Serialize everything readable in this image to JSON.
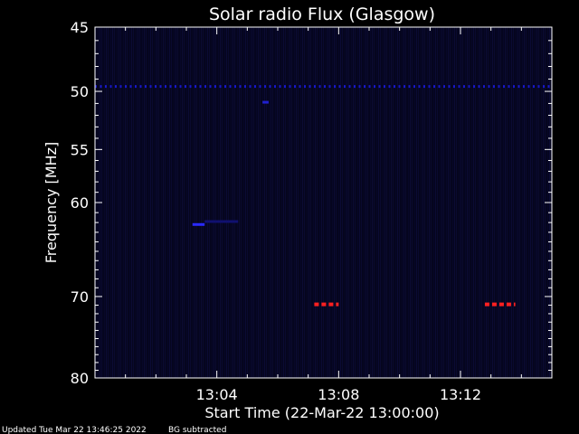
{
  "chart_data": {
    "type": "heatmap",
    "title": "Solar radio Flux (Glasgow)",
    "xlabel": "Start Time (22-Mar-22 13:00:00)",
    "ylabel": "Frequency [MHz]",
    "x_unit": "minutes after 13:00:00",
    "xlim": [
      0,
      15
    ],
    "ylim": [
      80,
      45
    ],
    "y_scale": "log",
    "x_ticks": [
      {
        "value": 4,
        "label": "13:04"
      },
      {
        "value": 8,
        "label": "13:08"
      },
      {
        "value": 12,
        "label": "13:12"
      }
    ],
    "y_ticks": [
      {
        "value": 45,
        "label": "45"
      },
      {
        "value": 50,
        "label": "50"
      },
      {
        "value": 55,
        "label": "55"
      },
      {
        "value": 60,
        "label": "60"
      },
      {
        "value": 70,
        "label": "70"
      },
      {
        "value": 80,
        "label": "80"
      }
    ],
    "background_color": "#05051e",
    "features": [
      {
        "name": "constant-line",
        "freq_mhz": 49.6,
        "t_start": 0,
        "t_end": 15,
        "color": "#1818c8",
        "style": "dashed"
      },
      {
        "name": "spot",
        "freq_mhz": 50.9,
        "t_start": 5.5,
        "t_end": 5.7,
        "color": "#2020d0",
        "style": "solid"
      },
      {
        "name": "spot",
        "freq_mhz": 62.2,
        "t_start": 3.2,
        "t_end": 3.6,
        "color": "#2a2aff",
        "style": "solid"
      },
      {
        "name": "spot",
        "freq_mhz": 61.9,
        "t_start": 3.6,
        "t_end": 4.7,
        "color": "#101070",
        "style": "solid"
      },
      {
        "name": "burst",
        "freq_mhz": 70.9,
        "t_start": 7.2,
        "t_end": 8.0,
        "color": "#ff2020",
        "style": "dashed"
      },
      {
        "name": "burst",
        "freq_mhz": 70.9,
        "t_start": 12.8,
        "t_end": 13.8,
        "color": "#ff2020",
        "style": "dashed"
      }
    ]
  },
  "footer": {
    "updated": "Updated Tue Mar 22 13:46:25 2022",
    "note": "BG subtracted"
  }
}
